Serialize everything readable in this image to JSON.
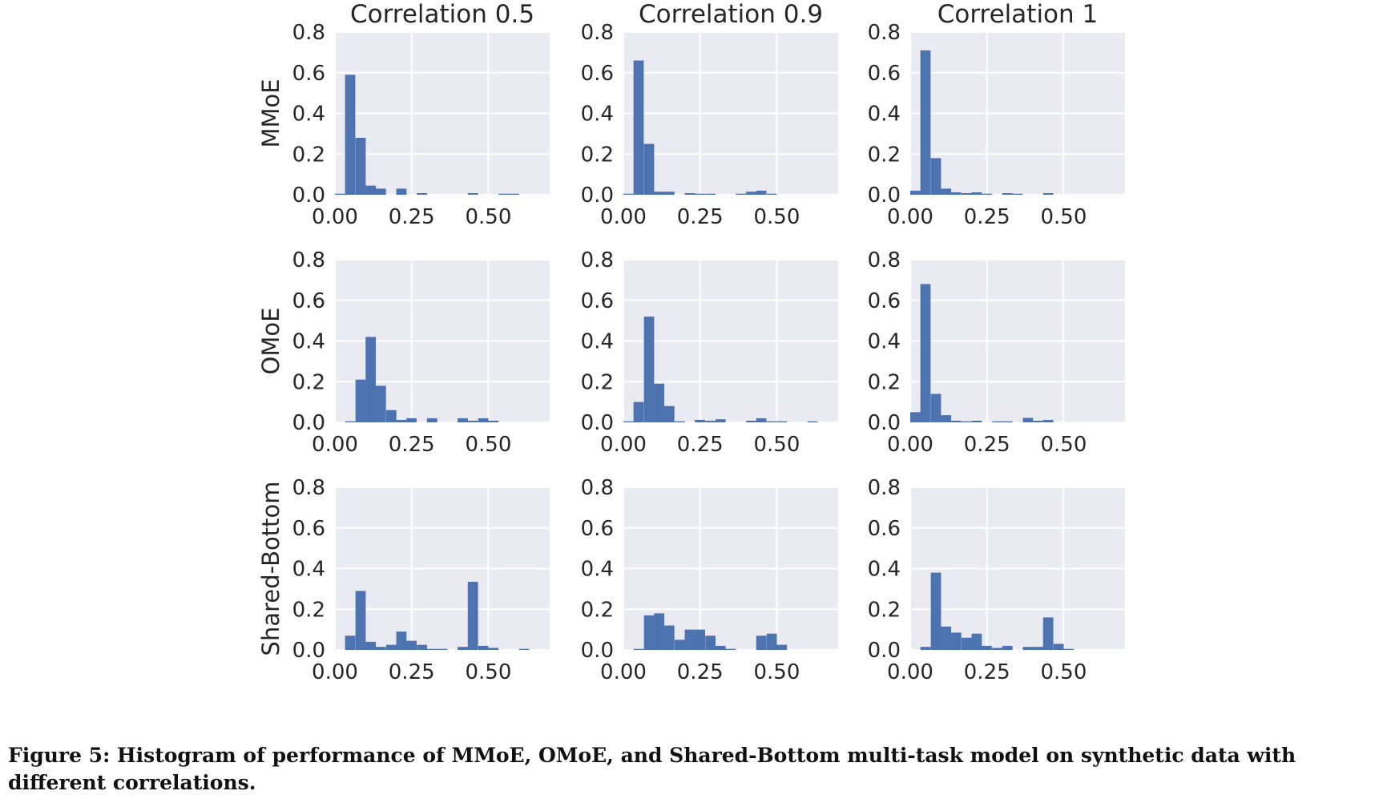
{
  "caption": "Figure 5: Histogram of performance of MMoE, OMoE, and Shared-Bottom multi-task model on synthetic data with different correlations.",
  "colors": {
    "bar": "#4c72b0",
    "panel_bg": "#eaeaf2",
    "grid": "#ffffff"
  },
  "chart_data": {
    "type": "bar",
    "layout": "3x3 grid of histograms",
    "column_titles": [
      "Correlation 0.5",
      "Correlation 0.9",
      "Correlation 1"
    ],
    "row_labels": [
      "MMoE",
      "OMoE",
      "Shared-Bottom"
    ],
    "x_ticks": [
      "0.00",
      "0.25",
      "0.50"
    ],
    "y_ticks": [
      "0.0",
      "0.2",
      "0.4",
      "0.6",
      "0.8"
    ],
    "xlim": [
      0,
      0.7
    ],
    "ylim": [
      0,
      0.8
    ],
    "bin_width": 0.0333,
    "grid": true,
    "panels": [
      {
        "row": "MMoE",
        "column": "Correlation 0.5",
        "bin_starts": [
          0.0,
          0.033,
          0.067,
          0.1,
          0.133,
          0.2,
          0.267,
          0.433,
          0.533,
          0.567
        ],
        "values": [
          0.005,
          0.59,
          0.28,
          0.045,
          0.03,
          0.03,
          0.008,
          0.008,
          0.005,
          0.005
        ]
      },
      {
        "row": "MMoE",
        "column": "Correlation 0.9",
        "bin_starts": [
          0.0,
          0.033,
          0.067,
          0.1,
          0.133,
          0.2,
          0.233,
          0.267,
          0.367,
          0.4,
          0.433,
          0.467
        ],
        "values": [
          0.005,
          0.66,
          0.25,
          0.015,
          0.015,
          0.008,
          0.005,
          0.005,
          0.005,
          0.015,
          0.02,
          0.005
        ]
      },
      {
        "row": "MMoE",
        "column": "Correlation 1",
        "bin_starts": [
          0.0,
          0.033,
          0.067,
          0.1,
          0.133,
          0.167,
          0.2,
          0.233,
          0.3,
          0.333,
          0.433
        ],
        "values": [
          0.02,
          0.71,
          0.18,
          0.03,
          0.012,
          0.008,
          0.012,
          0.005,
          0.008,
          0.005,
          0.008
        ]
      },
      {
        "row": "OMoE",
        "column": "Correlation 0.5",
        "bin_starts": [
          0.033,
          0.067,
          0.1,
          0.133,
          0.167,
          0.2,
          0.233,
          0.3,
          0.4,
          0.433,
          0.467,
          0.5
        ],
        "values": [
          0.005,
          0.21,
          0.42,
          0.18,
          0.06,
          0.012,
          0.02,
          0.02,
          0.02,
          0.008,
          0.02,
          0.008
        ]
      },
      {
        "row": "OMoE",
        "column": "Correlation 0.9",
        "bin_starts": [
          0.0,
          0.033,
          0.067,
          0.1,
          0.133,
          0.167,
          0.233,
          0.267,
          0.3,
          0.4,
          0.433,
          0.467,
          0.5,
          0.6
        ],
        "values": [
          0.005,
          0.1,
          0.52,
          0.19,
          0.08,
          0.005,
          0.012,
          0.008,
          0.015,
          0.008,
          0.02,
          0.005,
          0.005,
          0.005
        ]
      },
      {
        "row": "OMoE",
        "column": "Correlation 1",
        "bin_starts": [
          0.0,
          0.033,
          0.067,
          0.1,
          0.133,
          0.167,
          0.2,
          0.267,
          0.3,
          0.367,
          0.4,
          0.433
        ],
        "values": [
          0.05,
          0.68,
          0.14,
          0.035,
          0.008,
          0.005,
          0.008,
          0.005,
          0.005,
          0.022,
          0.008,
          0.012
        ]
      },
      {
        "row": "Shared-Bottom",
        "column": "Correlation 0.5",
        "bin_starts": [
          0.033,
          0.067,
          0.1,
          0.133,
          0.167,
          0.2,
          0.233,
          0.267,
          0.3,
          0.333,
          0.4,
          0.433,
          0.467,
          0.5,
          0.6
        ],
        "values": [
          0.07,
          0.29,
          0.04,
          0.015,
          0.025,
          0.09,
          0.045,
          0.025,
          0.005,
          0.005,
          0.015,
          0.335,
          0.02,
          0.01,
          0.005
        ]
      },
      {
        "row": "Shared-Bottom",
        "column": "Correlation 0.9",
        "bin_starts": [
          0.033,
          0.067,
          0.1,
          0.133,
          0.167,
          0.2,
          0.233,
          0.267,
          0.3,
          0.333,
          0.433,
          0.467,
          0.5
        ],
        "values": [
          0.005,
          0.17,
          0.18,
          0.12,
          0.05,
          0.1,
          0.1,
          0.07,
          0.02,
          0.005,
          0.07,
          0.08,
          0.025
        ]
      },
      {
        "row": "Shared-Bottom",
        "column": "Correlation 1",
        "bin_starts": [
          0.033,
          0.067,
          0.1,
          0.133,
          0.167,
          0.2,
          0.233,
          0.267,
          0.3,
          0.367,
          0.4,
          0.433,
          0.467,
          0.5
        ],
        "values": [
          0.015,
          0.38,
          0.115,
          0.085,
          0.06,
          0.08,
          0.02,
          0.01,
          0.02,
          0.015,
          0.015,
          0.16,
          0.03,
          0.005
        ]
      }
    ]
  }
}
